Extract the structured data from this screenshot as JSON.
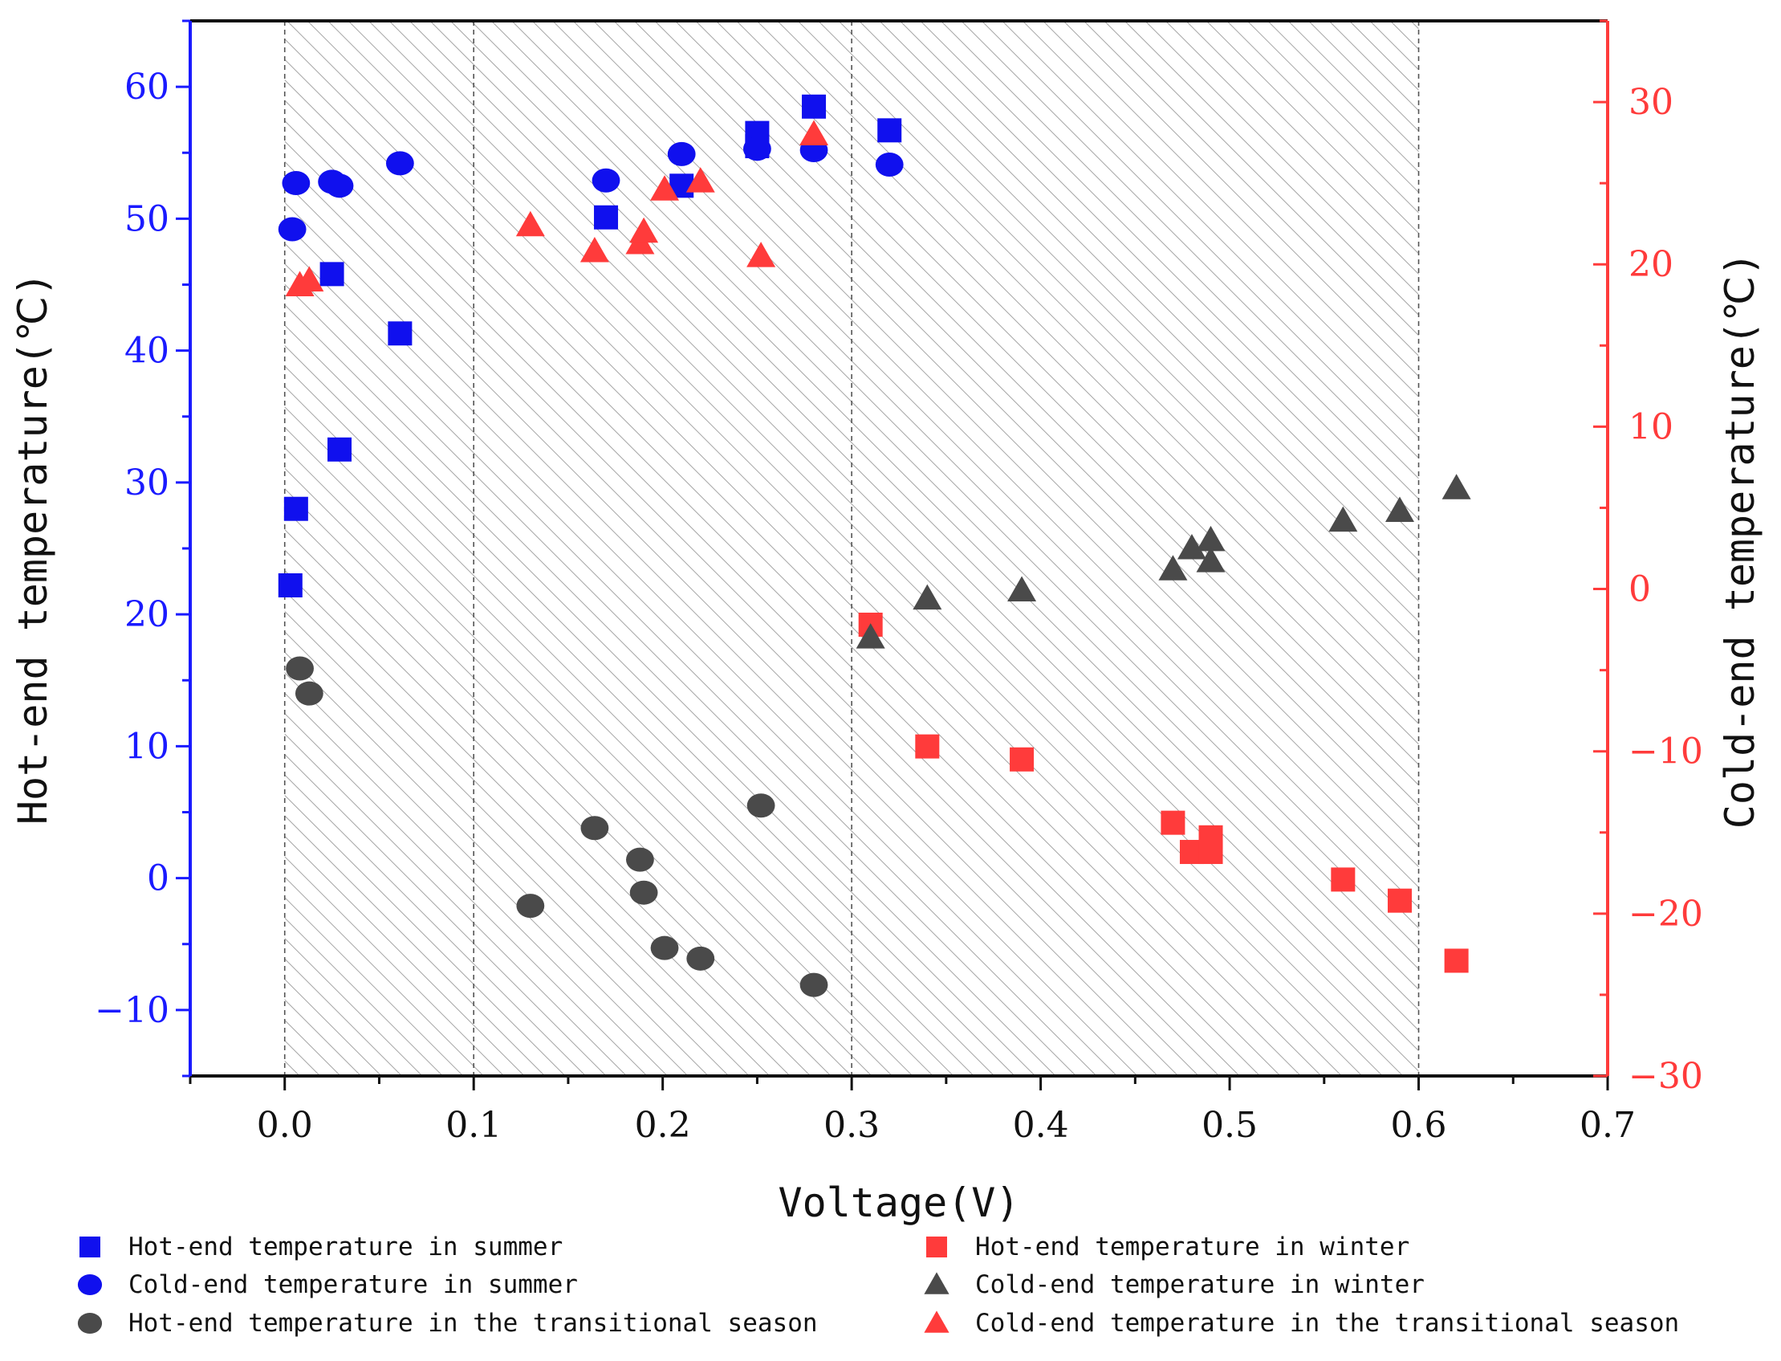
{
  "chart_data": {
    "type": "scatter",
    "title": "",
    "xlabel": "Voltage(V)",
    "ylabel": "Hot-end temperature(℃)",
    "y2label": "Cold-end temperature(℃)",
    "xlim": [
      -0.05,
      0.7
    ],
    "ylim": [
      -15,
      65
    ],
    "y2lim": [
      -30,
      35
    ],
    "x_ticks": [
      0.0,
      0.1,
      0.2,
      0.3,
      0.4,
      0.5,
      0.6,
      0.7
    ],
    "x_tick_labels": [
      "0.0",
      "0.1",
      "0.2",
      "0.3",
      "0.4",
      "0.5",
      "0.6",
      "0.7"
    ],
    "y_ticks": [
      -10,
      0,
      10,
      20,
      30,
      40,
      50,
      60
    ],
    "y_tick_labels": [
      "−10",
      "0",
      "10",
      "20",
      "30",
      "40",
      "50",
      "60"
    ],
    "y2_ticks": [
      -30,
      -20,
      -10,
      0,
      10,
      20,
      30
    ],
    "y2_tick_labels": [
      "−30",
      "−20",
      "−10",
      "0",
      "10",
      "20",
      "30"
    ],
    "left_axis_color": "#1a1aff",
    "right_axis_color": "#ff3b3b",
    "shaded_region_x": [
      0.0,
      0.6
    ],
    "vertical_dashed_lines_x": [
      0.0,
      0.1,
      0.3,
      0.6
    ],
    "legend_position": "bottom",
    "series": [
      {
        "name": "Hot-end temperature in summer",
        "axis": "left",
        "marker": "square",
        "color": "#1010ee",
        "x": [
          0.003,
          0.006,
          0.025,
          0.029,
          0.061,
          0.17,
          0.21,
          0.25,
          0.25,
          0.28,
          0.32
        ],
        "y": [
          22.2,
          28.0,
          45.8,
          32.5,
          41.3,
          50.1,
          52.5,
          56.5,
          55.5,
          58.5,
          56.7
        ]
      },
      {
        "name": "Cold-end temperature in summer",
        "axis": "left",
        "marker": "circle",
        "color": "#1010ee",
        "x": [
          0.004,
          0.006,
          0.025,
          0.029,
          0.061,
          0.17,
          0.21,
          0.25,
          0.28,
          0.32
        ],
        "y": [
          49.2,
          52.7,
          52.8,
          52.5,
          54.2,
          52.9,
          54.9,
          55.3,
          55.2,
          54.1
        ]
      },
      {
        "name": "Hot-end temperature in the transitional season",
        "axis": "left",
        "marker": "circle",
        "color": "#4a4a4a",
        "x": [
          0.008,
          0.013,
          0.13,
          0.164,
          0.188,
          0.19,
          0.201,
          0.22,
          0.252,
          0.28
        ],
        "y": [
          15.9,
          14.0,
          -2.1,
          3.8,
          1.4,
          -1.1,
          -5.3,
          -6.1,
          5.5,
          -8.1
        ]
      },
      {
        "name": "Hot-end temperature in winter",
        "axis": "right",
        "marker": "square",
        "color": "#ff3b3b",
        "x": [
          0.31,
          0.34,
          0.39,
          0.47,
          0.48,
          0.49,
          0.49,
          0.56,
          0.59,
          0.62
        ],
        "y": [
          -2.2,
          -9.7,
          -10.5,
          -14.4,
          -16.2,
          -15.3,
          -16.2,
          -17.9,
          -19.2,
          -22.9
        ]
      },
      {
        "name": "Cold-end temperature in winter",
        "axis": "right",
        "marker": "triangle",
        "color": "#4a4a4a",
        "x": [
          0.31,
          0.34,
          0.39,
          0.47,
          0.48,
          0.49,
          0.49,
          0.56,
          0.59,
          0.62
        ],
        "y": [
          -3.0,
          -0.6,
          -0.1,
          1.2,
          2.5,
          3.0,
          1.7,
          4.2,
          4.8,
          6.2
        ]
      },
      {
        "name": "Cold-end temperature in the transitional season",
        "axis": "right",
        "marker": "triangle",
        "color": "#ff3b3b",
        "x": [
          0.008,
          0.013,
          0.13,
          0.164,
          0.188,
          0.19,
          0.201,
          0.22,
          0.252,
          0.28
        ],
        "y": [
          18.7,
          19.0,
          22.4,
          20.8,
          21.3,
          22.0,
          24.6,
          25.1,
          20.5,
          28.0
        ]
      }
    ]
  }
}
